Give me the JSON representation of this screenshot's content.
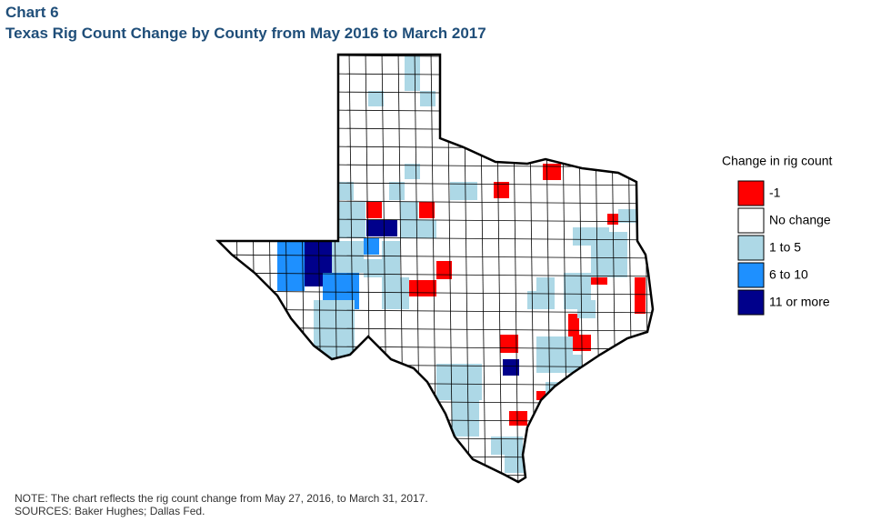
{
  "header": {
    "chart_label": "Chart 6",
    "title": "Texas Rig Count Change by County from May 2016 to March 2017"
  },
  "legend": {
    "title": "Change in rig count",
    "items": [
      {
        "label": "-1",
        "color": "#ff0000"
      },
      {
        "label": "No change",
        "color": "#ffffff"
      },
      {
        "label": "1 to 5",
        "color": "#add8e6"
      },
      {
        "label": "6 to 10",
        "color": "#1e90ff"
      },
      {
        "label": "11 or more",
        "color": "#00008b"
      }
    ]
  },
  "notes": [
    "NOTE: The chart reflects the rig count change from May 27, 2016, to March 31, 2017.",
    "SOURCES: Baker Hughes; Dallas Fed."
  ]
}
